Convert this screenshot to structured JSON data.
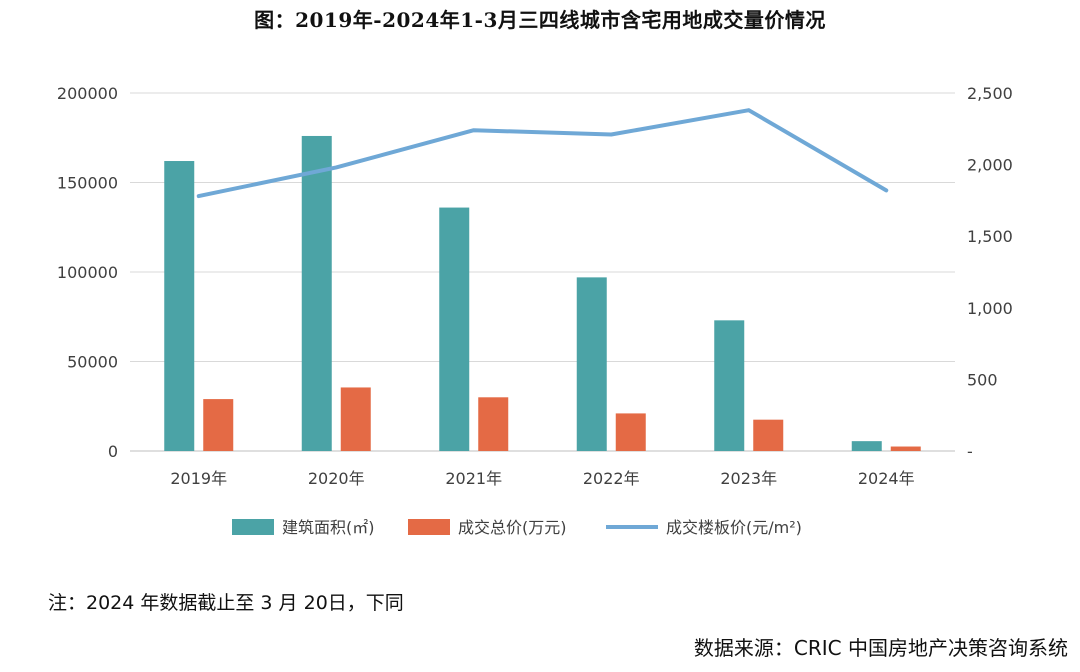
{
  "title": "图：2019年-2024年1-3月三四线城市含宅用地成交量价情况",
  "footnote": "注：2024 年数据截止至 3 月 20日，下同",
  "source": "数据来源：CRIC 中国房地产决策咨询系统",
  "colors": {
    "area": "#4BA3A6",
    "total": "#E46A45",
    "price": "#6FA8D6",
    "grid": "#D9D9D9",
    "text": "#404040"
  },
  "chart_data": {
    "type": "bar",
    "categories": [
      "2019年",
      "2020年",
      "2021年",
      "2022年",
      "2023年",
      "2024年"
    ],
    "series": [
      {
        "name": "建筑面积(㎡)",
        "type": "bar",
        "axis": "left",
        "values": [
          162000,
          176000,
          136000,
          97000,
          73000,
          5500
        ]
      },
      {
        "name": "成交总价(万元)",
        "type": "bar",
        "axis": "left",
        "values": [
          29000,
          35500,
          30000,
          21000,
          17500,
          2500
        ]
      },
      {
        "name": "成交楼板价(元/m²)",
        "type": "line",
        "axis": "right",
        "values": [
          1780,
          1980,
          2240,
          2210,
          2380,
          1820
        ]
      }
    ],
    "y_left": {
      "min": 0,
      "max": 200000,
      "ticks": [
        0,
        50000,
        100000,
        150000,
        200000
      ],
      "tick_labels": [
        "0",
        "50000",
        "100000",
        "150000",
        "200000"
      ]
    },
    "y_right": {
      "min": 0,
      "max": 2500,
      "ticks": [
        0,
        500,
        1000,
        1500,
        2000,
        2500
      ],
      "tick_labels": [
        "-",
        "500",
        "1,000",
        "1,500",
        "2,000",
        "2,500"
      ]
    },
    "grid": true,
    "legend_position": "bottom"
  }
}
